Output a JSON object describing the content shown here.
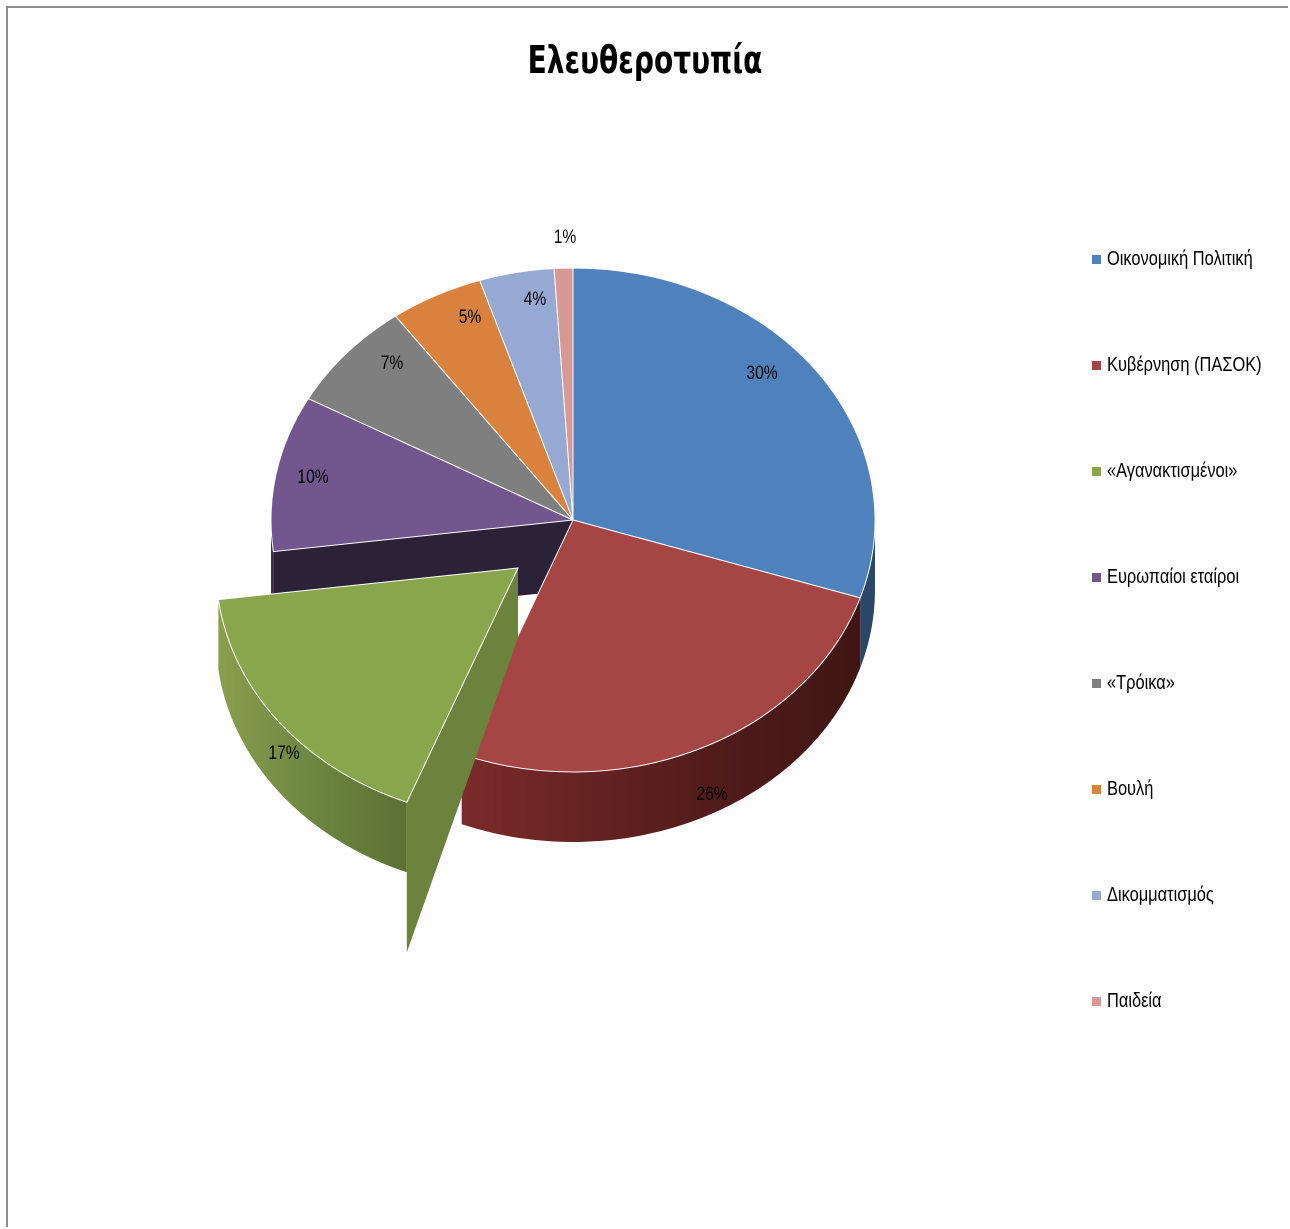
{
  "chart_data": {
    "type": "pie",
    "title": "Ελευθεροτυπία",
    "categories": [
      "Οικονομική Πολιτική",
      "Κυβέρνηση (ΠΑΣΟΚ)",
      "«Αγανακτισμένοι»",
      "Ευρωπαίοι εταίροι",
      "«Τρόικα»",
      "Βουλή",
      "Δικομματισμός",
      "Παιδεία"
    ],
    "values": [
      30,
      26,
      17,
      10,
      7,
      5,
      4,
      1
    ],
    "labels": [
      "30%",
      "26%",
      "17%",
      "10%",
      "7%",
      "5%",
      "4%",
      "1%"
    ],
    "colors": [
      "#4f81bd",
      "#a64644",
      "#8aa64d",
      "#71578e",
      "#7f7f7f",
      "#d9823e",
      "#95a9d3",
      "#d79896"
    ],
    "exploded": "«Αγανακτισμένοι»",
    "style": "3d",
    "legend_position": "right"
  }
}
